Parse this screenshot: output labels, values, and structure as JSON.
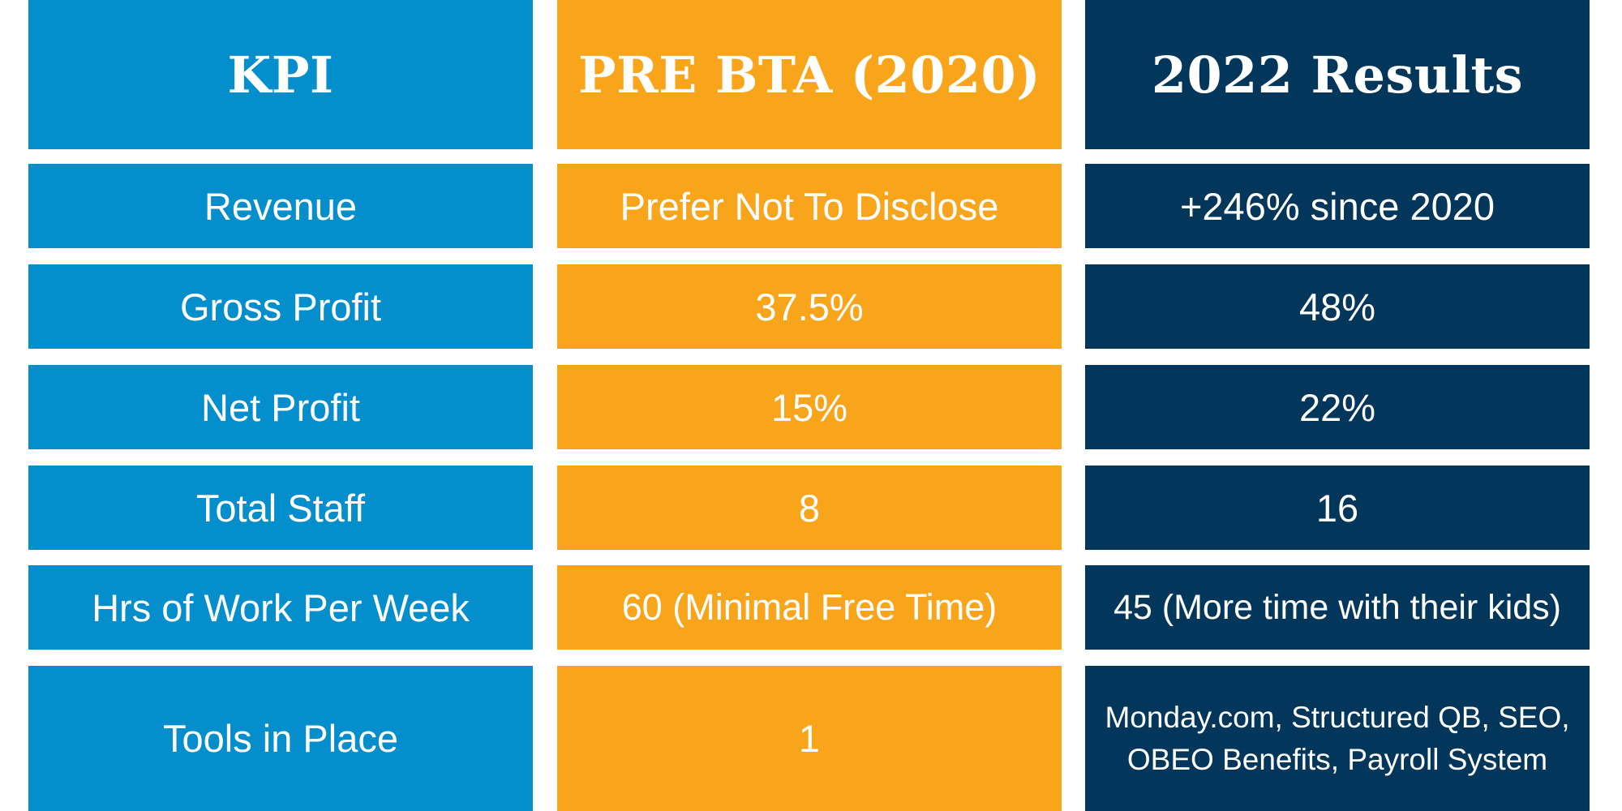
{
  "headers": {
    "kpi": "KPI",
    "pre": "PRE BTA (2020)",
    "results": "2022 Results"
  },
  "rows": [
    {
      "kpi": "Revenue",
      "pre": "Prefer Not To Disclose",
      "results": "+246% since 2020"
    },
    {
      "kpi": "Gross Profit",
      "pre": "37.5%",
      "results": "48%"
    },
    {
      "kpi": "Net Profit",
      "pre": "15%",
      "results": "22%"
    },
    {
      "kpi": "Total Staff",
      "pre": "8",
      "results": "16"
    },
    {
      "kpi": "Hrs of Work Per Week",
      "pre": "60 (Minimal Free Time)",
      "results": "45 (More time with their kids)"
    },
    {
      "kpi": "Tools in Place",
      "pre": "1",
      "results_lines": [
        "Monday.com, Structured QB, SEO,",
        "OBEO Benefits, Payroll System"
      ]
    }
  ],
  "colors": {
    "kpi_column": "#048fcc",
    "pre_column": "#f8a51c",
    "results_column": "#02365b",
    "text": "#ffffff"
  }
}
